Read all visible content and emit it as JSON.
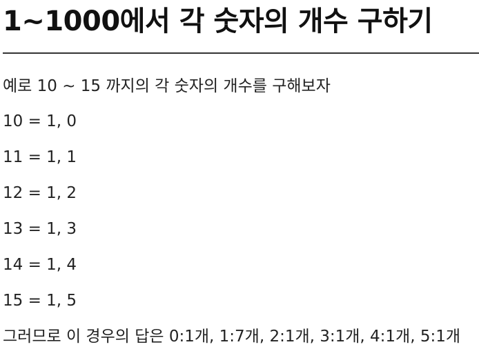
{
  "document": {
    "title": "1~1000에서 각 숫자의 개수 구하기",
    "intro": "예로 10 ~ 15 까지의 각 숫자의 개수를 구해보자",
    "examples": [
      "10 = 1, 0",
      "11 = 1, 1",
      "12 = 1, 2",
      "13 = 1, 3",
      "14 = 1, 4",
      "15 = 1, 5"
    ],
    "conclusion": "그러므로 이 경우의 답은 0:1개, 1:7개, 2:1개, 3:1개, 4:1개, 5:1개"
  }
}
